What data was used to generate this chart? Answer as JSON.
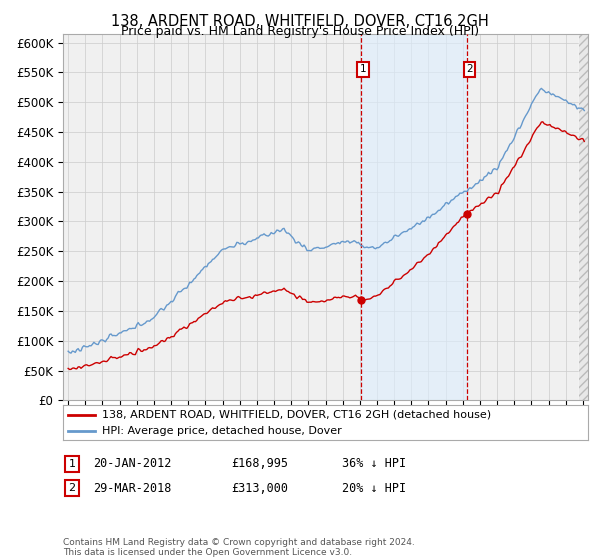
{
  "title": "138, ARDENT ROAD, WHITFIELD, DOVER, CT16 2GH",
  "subtitle": "Price paid vs. HM Land Registry's House Price Index (HPI)",
  "ylim": [
    0,
    600000
  ],
  "yticks": [
    0,
    50000,
    100000,
    150000,
    200000,
    250000,
    300000,
    350000,
    400000,
    450000,
    500000,
    550000,
    600000
  ],
  "ytick_labels": [
    "£0",
    "£50K",
    "£100K",
    "£150K",
    "£200K",
    "£250K",
    "£300K",
    "£350K",
    "£400K",
    "£450K",
    "£500K",
    "£550K",
    "£600K"
  ],
  "sale1_date": 2012.054,
  "sale1_price": 168995,
  "sale2_date": 2018.24,
  "sale2_price": 313000,
  "sale1_label": "20-JAN-2012",
  "sale2_label": "29-MAR-2018",
  "sale1_text": "£168,995",
  "sale2_text": "£313,000",
  "sale1_pct": "36% ↓ HPI",
  "sale2_pct": "20% ↓ HPI",
  "legend_line1": "138, ARDENT ROAD, WHITFIELD, DOVER, CT16 2GH (detached house)",
  "legend_line2": "HPI: Average price, detached house, Dover",
  "footnote": "Contains HM Land Registry data © Crown copyright and database right 2024.\nThis data is licensed under the Open Government Licence v3.0.",
  "red_line_color": "#cc0000",
  "blue_line_color": "#6699cc",
  "shade_color": "#ddeeff",
  "background_color": "#f0f0f0",
  "grid_color": "#cccccc",
  "title_fontsize": 10.5,
  "axis_fontsize": 8.5,
  "xlim_left": 1994.7,
  "xlim_right": 2025.3
}
